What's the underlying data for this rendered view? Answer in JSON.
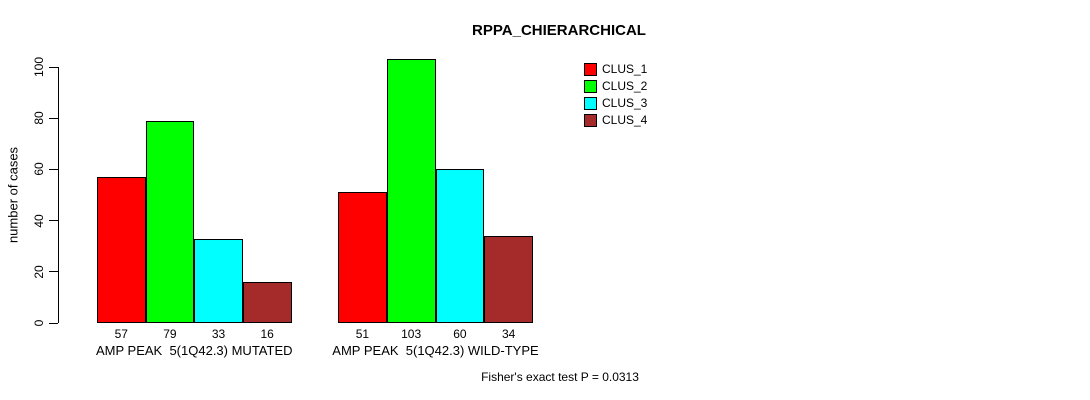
{
  "chart_data": {
    "type": "bar",
    "title": "RPPA_CHIERARCHICAL",
    "ylabel": "number of cases",
    "xlabel": "",
    "ylim": [
      0,
      100
    ],
    "yticks": [
      0,
      20,
      40,
      60,
      80,
      100
    ],
    "grid": false,
    "legend_position": "top-right",
    "bar_border_color": "#000000",
    "categories": [
      "AMP PEAK  5(1Q42.3) MUTATED",
      "AMP PEAK  5(1Q42.3) WILD-TYPE"
    ],
    "series": [
      {
        "name": "CLUS_1",
        "color": "#ff0000",
        "values": [
          57,
          51
        ]
      },
      {
        "name": "CLUS_2",
        "color": "#00ff00",
        "values": [
          79,
          103
        ]
      },
      {
        "name": "CLUS_3",
        "color": "#00ffff",
        "values": [
          33,
          60
        ]
      },
      {
        "name": "CLUS_4",
        "color": "#a52a2a",
        "values": [
          16,
          34
        ]
      }
    ],
    "show_value_labels": true,
    "annotation": "Fisher's exact test P = 0.0313"
  }
}
